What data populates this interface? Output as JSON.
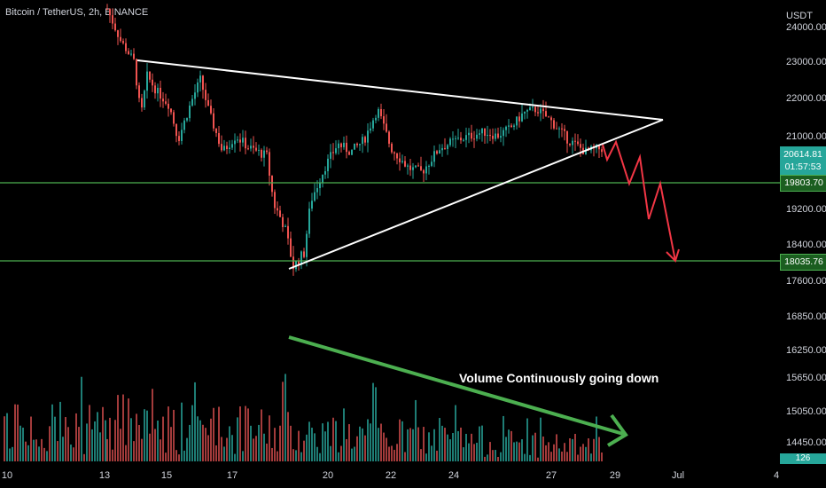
{
  "header": {
    "symbol_title": "Bitcoin / TetherUS, 2h, BINANCE",
    "currency": "USDT"
  },
  "price_tags": {
    "last_price": "20614.81",
    "countdown": "01:57:53",
    "level_1": "19803.70",
    "level_2": "18035.76",
    "volume_value": "126"
  },
  "annotation": {
    "volume_text": "Volume Continuously going down"
  },
  "colors": {
    "background": "#000000",
    "up": "#26a69a",
    "down": "#ef5350",
    "trendline": "#ffffff",
    "level_line": "#4caf50",
    "projection": "#f23645",
    "volume_arrow": "#4caf50",
    "last_price_tag": "#26a69a",
    "axis_text": "#d1d4dc"
  },
  "chart_data": {
    "type": "candlestick",
    "timeframe": "2h",
    "y_axis": {
      "ticks": [
        24000,
        23000,
        22000,
        21000,
        19200,
        18400,
        17600,
        16850,
        16250,
        15650,
        15050,
        14450
      ],
      "tick_labels": [
        "24000.00",
        "23000.00",
        "22000.00",
        "21000.00",
        "19200.00",
        "18400.00",
        "17600.00",
        "16850.00",
        "16250.00",
        "15650.00",
        "15050.00",
        "14450.00"
      ]
    },
    "x_axis": {
      "tick_labels": [
        "10",
        "13",
        "15",
        "17",
        "20",
        "22",
        "24",
        "27",
        "29",
        "Jul",
        "4"
      ]
    },
    "horizontal_levels": [
      19803.7,
      18035.76
    ],
    "last_price": 20614.81,
    "triangle": {
      "upper_line": [
        {
          "date": "Jun 13",
          "price": 23000
        },
        {
          "date": "Jun 30",
          "price": 21350
        }
      ],
      "lower_line": [
        {
          "date": "Jun 18",
          "price": 17800
        },
        {
          "date": "Jun 30",
          "price": 21350
        }
      ]
    },
    "projection_path": [
      20900,
      20500,
      20700,
      19800,
      20600,
      19500,
      19800,
      18035.76
    ],
    "candles_summary": {
      "start_price": 24500,
      "low": 17600,
      "recent_range": [
        20300,
        21800
      ]
    },
    "volume_trend": "down"
  }
}
